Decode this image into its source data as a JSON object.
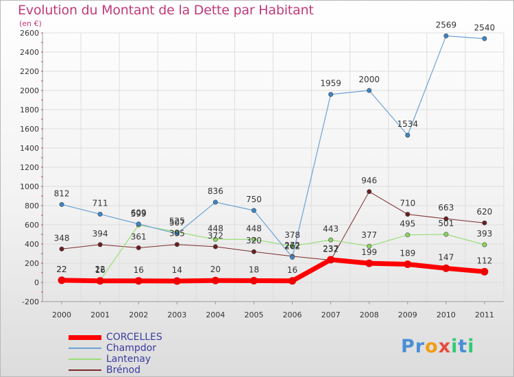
{
  "header": {
    "title": "Evolution du Montant de la Dette par Habitant",
    "unit": "(en €)"
  },
  "colors": {
    "title": "#c0397a",
    "grid": "#dddddd",
    "axis_text": "#333333",
    "legend_text": "#3a3aa0"
  },
  "chart_data": {
    "type": "line",
    "x": [
      "2000",
      "2001",
      "2002",
      "2003",
      "2004",
      "2005",
      "2006",
      "2007",
      "2008",
      "2009",
      "2010",
      "2011"
    ],
    "ylim": [
      -200,
      2600
    ],
    "yticks": [
      "-200",
      "0",
      "200",
      "400",
      "600",
      "800",
      "1000",
      "1200",
      "1400",
      "1600",
      "1800",
      "2000",
      "2200",
      "2400",
      "2600"
    ],
    "grid": true,
    "legend_position": "bottom-left",
    "series": [
      {
        "name": "Brénod",
        "color": "#7a2a2a",
        "marker": "#6a1f1f",
        "width": 1,
        "values": [
          348,
          394,
          361,
          395,
          372,
          320,
          272,
          232,
          946,
          710,
          663,
          620
        ],
        "labels": [
          "348",
          "394",
          "361",
          "395",
          "372",
          "320",
          "272",
          "232",
          "946",
          "710",
          "663",
          "620"
        ]
      },
      {
        "name": "Lantenay",
        "color": "#99dd77",
        "marker": "#8bd65f",
        "width": 1.2,
        "values": [
          22,
          22,
          599,
          525,
          448,
          448,
          378,
          443,
          377,
          495,
          501,
          393
        ],
        "labels": [
          "22",
          "22",
          "599",
          "525",
          "448",
          "448",
          "378",
          "443",
          "377",
          "495",
          "501",
          "393"
        ]
      },
      {
        "name": "Champdor",
        "color": "#6aa2d6",
        "marker": "#3d86c6",
        "width": 1.2,
        "values": [
          812,
          711,
          609,
          507,
          836,
          750,
          262,
          1959,
          2000,
          1534,
          2569,
          2540
        ],
        "labels": [
          "812",
          "711",
          "609",
          "507",
          "836",
          "750",
          "262",
          "1959",
          "2000",
          "1534",
          "2569",
          "2540"
        ]
      },
      {
        "name": "CORCELLES",
        "color": "#ff0000",
        "marker": "#ee0000",
        "width": 7,
        "values": [
          22,
          16,
          16,
          14,
          20,
          18,
          16,
          237,
          199,
          189,
          147,
          112
        ],
        "labels": [
          "22",
          "16",
          "16",
          "14",
          "20",
          "18",
          "16",
          "237",
          "199",
          "189",
          "147",
          "112"
        ]
      }
    ]
  },
  "legend": {
    "items": [
      {
        "label": "CORCELLES",
        "color": "#ff0000",
        "height": 7
      },
      {
        "label": "Champdor",
        "color": "#6aa2d6",
        "height": 2
      },
      {
        "label": "Lantenay",
        "color": "#99dd77",
        "height": 2
      },
      {
        "label": "Brénod",
        "color": "#7a2a2a",
        "height": 2
      }
    ]
  },
  "logo": {
    "letters": [
      "P",
      "r",
      "o",
      "x",
      "i",
      "t",
      "i"
    ],
    "colors": [
      "#4a8fd6",
      "#4a8fd6",
      "#f39c12",
      "#e74c3c",
      "#2ecc71",
      "#4a8fd6",
      "#2ecc71"
    ]
  }
}
